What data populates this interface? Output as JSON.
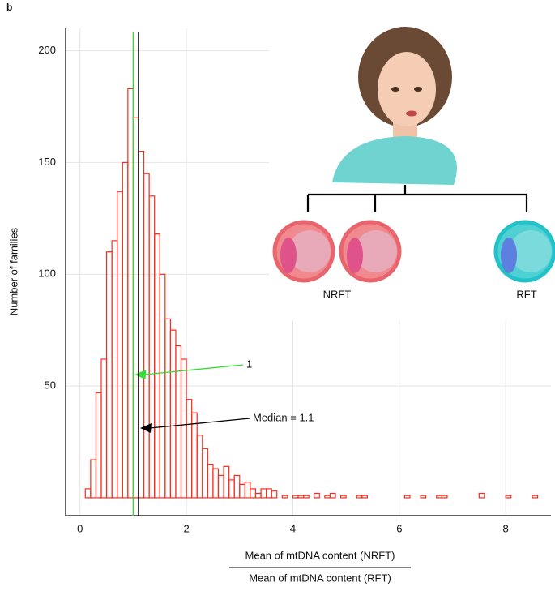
{
  "panel_label": "b",
  "chart_data": {
    "type": "histogram",
    "y_label": "Number of families",
    "x_label_numerator": "Mean of mtDNA content (NRFT)",
    "x_label_denominator": "Mean of mtDNA content (RFT)",
    "bins": [
      0.1,
      0.2,
      0.3,
      0.4,
      0.5,
      0.6,
      0.7,
      0.8,
      0.9,
      1.0,
      1.1,
      1.2,
      1.3,
      1.4,
      1.5,
      1.6,
      1.7,
      1.8,
      1.9,
      2.0,
      2.1,
      2.2,
      2.3,
      2.4,
      2.5,
      2.6,
      2.7,
      2.8,
      2.9,
      3.0,
      3.1,
      3.2,
      3.3,
      3.4,
      3.5,
      3.6,
      3.7,
      3.8,
      3.9,
      4.0,
      4.1,
      4.2,
      4.3,
      4.4,
      4.5,
      4.6,
      4.7,
      4.8,
      4.9,
      5.0,
      5.1,
      5.2,
      5.3,
      5.4,
      5.5,
      5.6,
      5.7,
      5.8,
      5.9,
      6.0,
      6.1,
      6.2,
      6.3,
      6.4,
      6.5,
      6.6,
      6.7,
      6.8,
      6.9,
      7.0,
      7.1,
      7.2,
      7.3,
      7.4,
      7.5,
      7.6,
      7.7,
      7.8,
      7.9,
      8.0,
      8.1,
      8.2,
      8.3,
      8.4,
      8.5,
      8.6
    ],
    "counts": [
      4,
      17,
      47,
      62,
      110,
      115,
      137,
      150,
      183,
      170,
      155,
      145,
      135,
      118,
      100,
      80,
      75,
      68,
      62,
      44,
      38,
      28,
      22,
      15,
      13,
      10,
      14,
      8,
      10,
      6,
      7,
      4,
      2,
      4,
      4,
      3,
      0,
      1,
      0,
      1,
      1,
      1,
      0,
      2,
      0,
      1,
      2,
      0,
      1,
      0,
      0,
      1,
      1,
      0,
      0,
      0,
      0,
      0,
      0,
      0,
      1,
      0,
      0,
      1,
      0,
      0,
      1,
      1,
      0,
      0,
      0,
      0,
      0,
      0,
      2,
      0,
      0,
      0,
      0,
      1,
      0,
      0,
      0,
      0,
      1
    ],
    "color": "#ff2a1a",
    "xlim": [
      -0.27,
      8.85
    ],
    "ylim": [
      -8,
      210
    ],
    "xticks": [
      0,
      2,
      4,
      6,
      8
    ],
    "yticks": [
      50,
      100,
      150,
      200
    ],
    "grid": true,
    "vlines": [
      {
        "x": 1,
        "color": "#33dd33",
        "label": "1"
      },
      {
        "x": 1.1,
        "color": "#000000",
        "label": "Median = 1.1"
      }
    ],
    "illustration_labels": [
      "NRFT",
      "RFT"
    ]
  }
}
